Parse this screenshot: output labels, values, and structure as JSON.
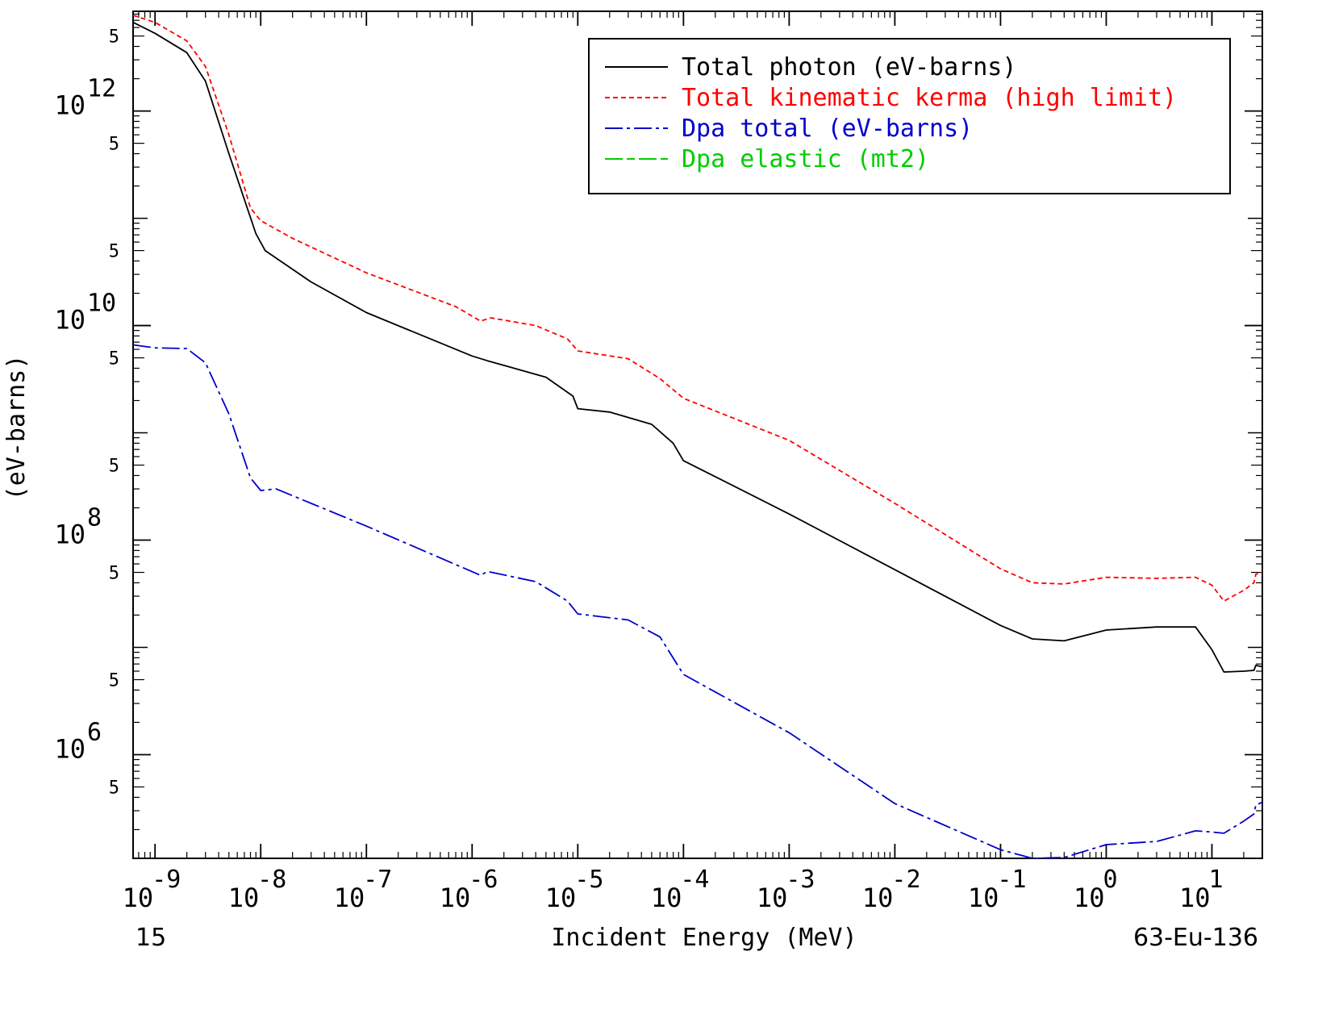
{
  "chart_data": {
    "type": "line",
    "title": "",
    "xlabel": "Incident Energy (MeV)",
    "ylabel": "(eV-barns)",
    "x_scale": "log",
    "y_scale": "log",
    "xlim": [
      6.2e-10,
      30
    ],
    "ylim": [
      108000.0,
      8500000000000.0
    ],
    "grid": false,
    "legend_position": "top-right",
    "footer_left": "15",
    "footer_right": "63-Eu-136",
    "x_major_ticks": [
      {
        "value": 1e-09,
        "label": "10",
        "exp": "-9"
      },
      {
        "value": 1e-08,
        "label": "10",
        "exp": "-8"
      },
      {
        "value": 1e-07,
        "label": "10",
        "exp": "-7"
      },
      {
        "value": 1e-06,
        "label": "10",
        "exp": "-6"
      },
      {
        "value": 1e-05,
        "label": "10",
        "exp": "-5"
      },
      {
        "value": 0.0001,
        "label": "10",
        "exp": "-4"
      },
      {
        "value": 0.001,
        "label": "10",
        "exp": "-3"
      },
      {
        "value": 0.01,
        "label": "10",
        "exp": "-2"
      },
      {
        "value": 0.1,
        "label": "10",
        "exp": "-1"
      },
      {
        "value": 1,
        "label": "10",
        "exp": "0"
      },
      {
        "value": 10,
        "label": "10",
        "exp": "1"
      }
    ],
    "y_major_ticks": [
      {
        "value": 1000000.0,
        "label": "10",
        "exp": "6"
      },
      {
        "value": 100000000.0,
        "label": "10",
        "exp": "8"
      },
      {
        "value": 10000000000.0,
        "label": "10",
        "exp": "10"
      },
      {
        "value": 1000000000000.0,
        "label": "10",
        "exp": "12"
      }
    ],
    "y_minor_labels": [
      {
        "value": 500000.0,
        "label": "5"
      },
      {
        "value": 5000000.0,
        "label": "5"
      },
      {
        "value": 50000000.0,
        "label": "5"
      },
      {
        "value": 500000000.0,
        "label": "5"
      },
      {
        "value": 5000000000.0,
        "label": "5"
      },
      {
        "value": 50000000000.0,
        "label": "5"
      },
      {
        "value": 500000000000.0,
        "label": "5"
      },
      {
        "value": 5000000000000.0,
        "label": "5"
      }
    ],
    "series": [
      {
        "name": "Total photon (eV-barns)",
        "color": "#000000",
        "dash": "solid",
        "points": [
          [
            6.2e-10,
            6700000000000.0
          ],
          [
            1e-09,
            5300000000000.0
          ],
          [
            2e-09,
            3500000000000.0
          ],
          [
            3e-09,
            1900000000000.0
          ],
          [
            5e-09,
            400000000000.0
          ],
          [
            9e-09,
            72000000000.0
          ],
          [
            1.1e-08,
            50000000000.0
          ],
          [
            3e-08,
            25500000000.0
          ],
          [
            1e-07,
            13200000000.0
          ],
          [
            1e-06,
            5200000000.0
          ],
          [
            1.4e-06,
            4700000000.0
          ],
          [
            5e-06,
            3300000000.0
          ],
          [
            9e-06,
            2200000000.0
          ],
          [
            1e-05,
            1680000000.0
          ],
          [
            2e-05,
            1560000000.0
          ],
          [
            5e-05,
            1200000000.0
          ],
          [
            8e-05,
            800000000.0
          ],
          [
            0.0001,
            550000000.0
          ],
          [
            0.0002,
            390000000.0
          ],
          [
            0.001,
            175000000.0
          ],
          [
            0.01,
            53000000.0
          ],
          [
            0.1,
            16000000.0
          ],
          [
            0.2,
            12000000.0
          ],
          [
            0.4,
            11500000.0
          ],
          [
            1,
            14500000.0
          ],
          [
            3,
            15500000.0
          ],
          [
            7,
            15500000.0
          ],
          [
            10,
            9500000.0
          ],
          [
            13,
            5900000.0
          ],
          [
            20,
            6000000.0
          ],
          [
            25,
            6100000.0
          ],
          [
            26,
            6800000.0
          ],
          [
            30,
            6600000.0
          ]
        ]
      },
      {
        "name": "Total kinematic kerma (high limit)",
        "color": "#ff0000",
        "dash": "6,4",
        "points": [
          [
            6.2e-10,
            7800000000000.0
          ],
          [
            1e-09,
            6700000000000.0
          ],
          [
            2e-09,
            4500000000000.0
          ],
          [
            3e-09,
            2600000000000.0
          ],
          [
            5e-09,
            600000000000.0
          ],
          [
            8e-09,
            125000000000.0
          ],
          [
            1e-08,
            95000000000.0
          ],
          [
            2e-08,
            65000000000.0
          ],
          [
            1e-07,
            31000000000.0
          ],
          [
            7e-07,
            15000000000.0
          ],
          [
            9e-07,
            13000000000.0
          ],
          [
            1.2e-06,
            11000000000.0
          ],
          [
            1.5e-06,
            11800000000.0
          ],
          [
            4e-06,
            10000000000.0
          ],
          [
            8e-06,
            7500000000.0
          ],
          [
            1e-05,
            5800000000.0
          ],
          [
            3e-05,
            4900000000.0
          ],
          [
            6e-05,
            3200000000.0
          ],
          [
            0.0001,
            2100000000.0
          ],
          [
            0.001,
            850000000.0
          ],
          [
            0.01,
            220000000.0
          ],
          [
            0.1,
            54000000.0
          ],
          [
            0.2,
            40000000.0
          ],
          [
            0.4,
            39000000.0
          ],
          [
            1,
            45000000.0
          ],
          [
            3,
            44000000.0
          ],
          [
            7,
            45000000.0
          ],
          [
            10,
            38000000.0
          ],
          [
            13,
            27000000.0
          ],
          [
            20,
            34000000.0
          ],
          [
            25,
            40000000.0
          ],
          [
            26,
            48000000.0
          ],
          [
            30,
            50000000.0
          ]
        ]
      },
      {
        "name": "Dpa total (eV-barns)",
        "color": "#0000cc",
        "dash": "22,5,4,5",
        "points": [
          [
            6.2e-10,
            6600000000.0
          ],
          [
            1e-09,
            6200000000.0
          ],
          [
            2e-09,
            6100000000.0
          ],
          [
            3e-09,
            4500000000.0
          ],
          [
            5e-09,
            1500000000.0
          ],
          [
            8e-09,
            380000000.0
          ],
          [
            1e-08,
            290000000.0
          ],
          [
            1.4e-08,
            300000000.0
          ],
          [
            1e-07,
            135000000.0
          ],
          [
            1.2e-06,
            47000000.0
          ],
          [
            1.4e-06,
            51000000.0
          ],
          [
            4e-06,
            41000000.0
          ],
          [
            8e-06,
            27000000.0
          ],
          [
            1e-05,
            20500000.0
          ],
          [
            3e-05,
            18000000.0
          ],
          [
            6e-05,
            12500000.0
          ],
          [
            0.0001,
            5600000.0
          ],
          [
            0.001,
            1600000.0
          ],
          [
            0.01,
            350000.0
          ],
          [
            0.1,
            130000.0
          ],
          [
            0.2,
            108000.0
          ],
          [
            0.4,
            110000.0
          ],
          [
            1,
            145000.0
          ],
          [
            3,
            155000.0
          ],
          [
            7,
            195000.0
          ],
          [
            10,
            190000.0
          ],
          [
            13,
            185000.0
          ],
          [
            20,
            240000.0
          ],
          [
            25,
            280000.0
          ],
          [
            26,
            340000.0
          ],
          [
            30,
            360000.0
          ]
        ]
      }
    ],
    "legend": [
      {
        "name": "Total photon (eV-barns)",
        "color": "#000000",
        "dash": "solid"
      },
      {
        "name": "Total kinematic kerma (high limit)",
        "color": "#ff0000",
        "dash": "6,4"
      },
      {
        "name": "Dpa total (eV-barns)",
        "color": "#0000cc",
        "dash": "22,5,4,5"
      },
      {
        "name": "Dpa elastic (mt2)",
        "color": "#00cc00",
        "dash": "22,5,10,5"
      }
    ]
  }
}
